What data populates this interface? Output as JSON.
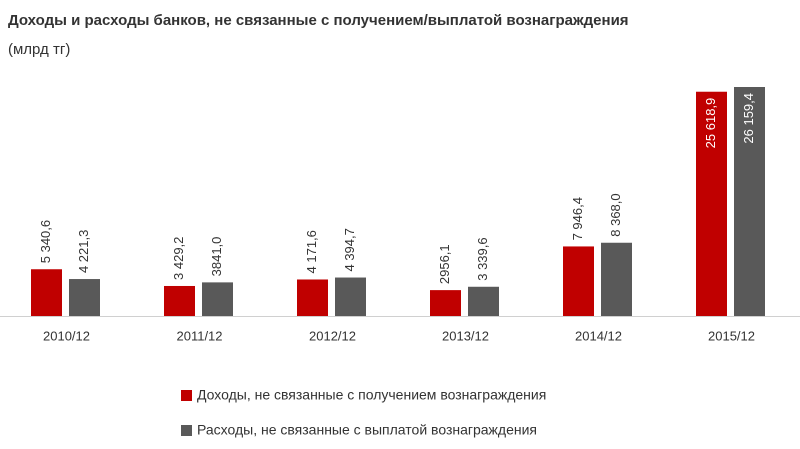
{
  "chart_data": {
    "type": "bar",
    "title": "Доходы и расходы банков, не связанные с получением/выплатой вознаграждения",
    "subtitle": "(млрд тг)",
    "categories": [
      "2010/12",
      "2011/12",
      "2012/12",
      "2013/12",
      "2014/12",
      "2015/12"
    ],
    "series": [
      {
        "name": "Доходы, не связанные с получением вознаграждения",
        "color": "#c00000",
        "values": [
          5340.6,
          3429.2,
          4171.6,
          2956.1,
          7946.4,
          25618.9
        ],
        "value_labels": [
          "5 340,6",
          "3 429,2",
          "4 171,6",
          "2956,1",
          "7 946,4",
          "25 618,9"
        ]
      },
      {
        "name": "Расходы, не связанные с выплатой вознаграждения",
        "color": "#595959",
        "values": [
          4221.3,
          3841.0,
          4394.7,
          3339.6,
          8368.0,
          26159.4
        ],
        "value_labels": [
          "4 221,3",
          "3841,0",
          "4 394,7",
          "3 339,6",
          "8 368,0",
          "26 159,4"
        ]
      }
    ]
  }
}
